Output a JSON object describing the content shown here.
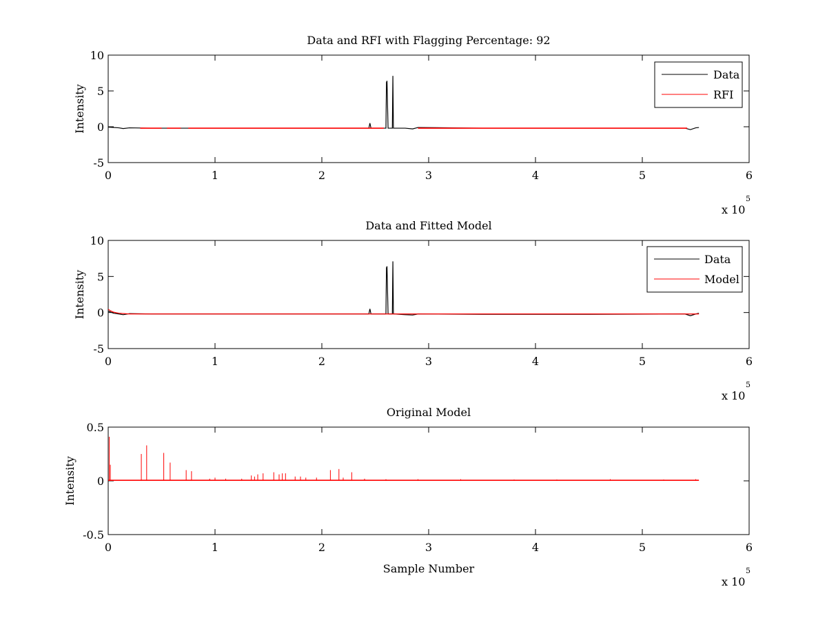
{
  "chart_data": [
    {
      "type": "line",
      "title": "Data and RFI with Flagging Percentage: 92",
      "xlabel": "",
      "ylabel": "Intensity",
      "xlim": [
        0,
        6
      ],
      "ylim": [
        -5,
        10
      ],
      "x_ticks": [
        "0",
        "1",
        "2",
        "3",
        "4",
        "5",
        "6"
      ],
      "y_ticks": [
        "-5",
        "0",
        "5",
        "10"
      ],
      "x_multiplier": "x 10",
      "x_multiplier_exp": "5",
      "legend": [
        "Data",
        "RFI"
      ],
      "legend_position": "top-right",
      "series": [
        {
          "name": "Data",
          "color": "#000000",
          "x": [
            0,
            0.1,
            0.14,
            0.2,
            0.4,
            1.0,
            1.8,
            2.44,
            2.45,
            2.46,
            2.47,
            2.6,
            2.605,
            2.61,
            2.62,
            2.66,
            2.665,
            2.67,
            2.68,
            2.78,
            2.85,
            2.9,
            3.5,
            4.5,
            5.4,
            5.45,
            5.5,
            5.53
          ],
          "y": [
            -0.05,
            -0.15,
            -0.25,
            -0.15,
            -0.2,
            -0.2,
            -0.2,
            -0.2,
            0.5,
            -0.2,
            -0.2,
            -0.2,
            6.2,
            6.4,
            -0.2,
            -0.2,
            7.1,
            -0.2,
            -0.2,
            -0.2,
            -0.3,
            -0.1,
            -0.2,
            -0.2,
            -0.2,
            -0.4,
            -0.15,
            -0.1
          ]
        },
        {
          "name": "RFI",
          "color": "#ff0000",
          "segments": [
            {
              "x": [
                0.3,
                0.5
              ],
              "y": [
                -0.2,
                -0.2
              ]
            },
            {
              "x": [
                0.55,
                0.68
              ],
              "y": [
                -0.2,
                -0.2
              ]
            },
            {
              "x": [
                0.75,
                2.58
              ],
              "y": [
                -0.2,
                -0.2
              ]
            },
            {
              "x": [
                2.9,
                5.42
              ],
              "y": [
                -0.2,
                -0.2
              ]
            }
          ]
        }
      ]
    },
    {
      "type": "line",
      "title": "Data and Fitted Model",
      "xlabel": "",
      "ylabel": "Intensity",
      "xlim": [
        0,
        6
      ],
      "ylim": [
        -5,
        10
      ],
      "x_ticks": [
        "0",
        "1",
        "2",
        "3",
        "4",
        "5",
        "6"
      ],
      "y_ticks": [
        "-5",
        "0",
        "5",
        "10"
      ],
      "x_multiplier": "x 10",
      "x_multiplier_exp": "5",
      "legend": [
        "Data",
        "Model"
      ],
      "legend_position": "top-right",
      "series": [
        {
          "name": "Data",
          "color": "#000000",
          "x": [
            0,
            0.05,
            0.1,
            0.14,
            0.2,
            0.4,
            1.0,
            1.8,
            2.44,
            2.45,
            2.46,
            2.47,
            2.6,
            2.605,
            2.61,
            2.62,
            2.66,
            2.665,
            2.67,
            2.68,
            2.78,
            2.85,
            2.9,
            3.5,
            4.5,
            5.4,
            5.45,
            5.5,
            5.53
          ],
          "y": [
            0.2,
            -0.1,
            -0.2,
            -0.3,
            -0.15,
            -0.2,
            -0.2,
            -0.2,
            -0.2,
            0.5,
            -0.2,
            -0.2,
            -0.2,
            6.2,
            6.4,
            -0.2,
            -0.2,
            7.1,
            -0.2,
            -0.2,
            -0.3,
            -0.35,
            -0.2,
            -0.25,
            -0.25,
            -0.2,
            -0.45,
            -0.2,
            -0.1
          ]
        },
        {
          "name": "Model",
          "color": "#ff0000",
          "x": [
            0,
            0.01,
            0.02,
            0.05,
            0.1,
            0.2,
            1.0,
            2.0,
            3.0,
            4.0,
            5.0,
            5.53
          ],
          "y": [
            0.45,
            0.35,
            0.25,
            0.05,
            -0.1,
            -0.2,
            -0.2,
            -0.2,
            -0.2,
            -0.2,
            -0.2,
            -0.2
          ]
        }
      ]
    },
    {
      "type": "line",
      "title": "Original Model",
      "xlabel": "Sample Number",
      "ylabel": "Intensity",
      "xlim": [
        0,
        6
      ],
      "ylim": [
        -0.5,
        0.5
      ],
      "x_ticks": [
        "0",
        "1",
        "2",
        "3",
        "4",
        "5",
        "6"
      ],
      "y_ticks": [
        "-0.5",
        "0",
        "0.5"
      ],
      "x_multiplier": "x 10",
      "x_multiplier_exp": "5",
      "series": [
        {
          "name": "Model",
          "color": "#ff0000",
          "baseline": 0.005,
          "x_max": 5.53,
          "spikes": [
            [
              0.01,
              0.41
            ],
            [
              0.02,
              0.15
            ],
            [
              0.31,
              0.25
            ],
            [
              0.36,
              0.33
            ],
            [
              0.52,
              0.26
            ],
            [
              0.58,
              0.17
            ],
            [
              0.73,
              0.1
            ],
            [
              0.78,
              0.09
            ],
            [
              0.95,
              0.02
            ],
            [
              1.0,
              0.03
            ],
            [
              1.1,
              0.02
            ],
            [
              1.25,
              0.02
            ],
            [
              1.34,
              0.05
            ],
            [
              1.37,
              0.04
            ],
            [
              1.4,
              0.06
            ],
            [
              1.45,
              0.07
            ],
            [
              1.55,
              0.08
            ],
            [
              1.6,
              0.06
            ],
            [
              1.63,
              0.07
            ],
            [
              1.66,
              0.07
            ],
            [
              1.75,
              0.04
            ],
            [
              1.8,
              0.04
            ],
            [
              1.85,
              0.03
            ],
            [
              1.95,
              0.03
            ],
            [
              2.08,
              0.1
            ],
            [
              2.16,
              0.11
            ],
            [
              2.2,
              0.03
            ],
            [
              2.28,
              0.08
            ],
            [
              2.4,
              0.02
            ],
            [
              2.6,
              0.015
            ],
            [
              2.9,
              0.015
            ],
            [
              3.3,
              0.015
            ],
            [
              3.8,
              0.012
            ],
            [
              4.2,
              0.012
            ],
            [
              4.7,
              0.015
            ],
            [
              5.2,
              0.012
            ],
            [
              5.5,
              0.015
            ]
          ]
        }
      ]
    }
  ]
}
